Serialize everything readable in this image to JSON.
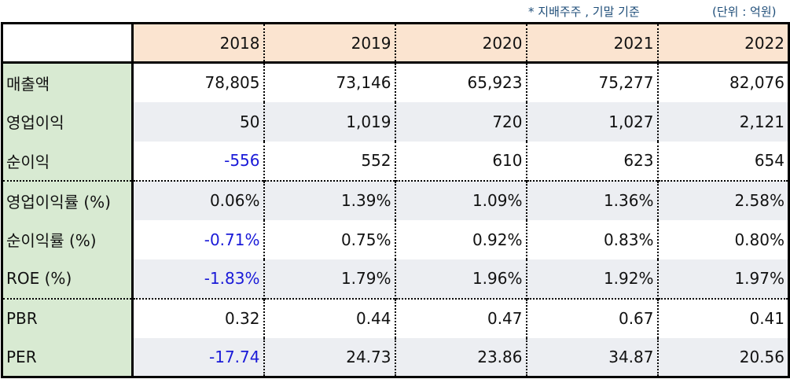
{
  "notes": {
    "basis": "* 지배주주 , 기말 기준",
    "unit": "(단위 : 억원)"
  },
  "colors": {
    "header_bg": "#fbe4d0",
    "label_bg": "#d8ead2",
    "shade_bg": "#eceef2",
    "negative_text": "#1a1ad8",
    "notes_text": "#1f4e79"
  },
  "table": {
    "corner": "",
    "years": [
      "2018",
      "2019",
      "2020",
      "2021",
      "2022"
    ],
    "rows": [
      {
        "label": "매출액",
        "values": [
          "78,805",
          "73,146",
          "65,923",
          "75,277",
          "82,076"
        ],
        "negative": [
          false,
          false,
          false,
          false,
          false
        ]
      },
      {
        "label": "영업이익",
        "values": [
          "50",
          "1,019",
          "720",
          "1,027",
          "2,121"
        ],
        "negative": [
          false,
          false,
          false,
          false,
          false
        ]
      },
      {
        "label": "순이익",
        "values": [
          "-556",
          "552",
          "610",
          "623",
          "654"
        ],
        "negative": [
          true,
          false,
          false,
          false,
          false
        ]
      },
      {
        "label": "영업이익률 (%)",
        "values": [
          "0.06%",
          "1.39%",
          "1.09%",
          "1.36%",
          "2.58%"
        ],
        "negative": [
          false,
          false,
          false,
          false,
          false
        ]
      },
      {
        "label": "순이익률 (%)",
        "values": [
          "-0.71%",
          "0.75%",
          "0.92%",
          "0.83%",
          "0.80%"
        ],
        "negative": [
          true,
          false,
          false,
          false,
          false
        ]
      },
      {
        "label": "ROE (%)",
        "values": [
          "-1.83%",
          "1.79%",
          "1.96%",
          "1.92%",
          "1.97%"
        ],
        "negative": [
          true,
          false,
          false,
          false,
          false
        ]
      },
      {
        "label": "PBR",
        "values": [
          "0.32",
          "0.44",
          "0.47",
          "0.67",
          "0.41"
        ],
        "negative": [
          false,
          false,
          false,
          false,
          false
        ]
      },
      {
        "label": "PER",
        "values": [
          "-17.74",
          "24.73",
          "23.86",
          "34.87",
          "20.56"
        ],
        "negative": [
          true,
          false,
          false,
          false,
          false
        ]
      }
    ]
  }
}
